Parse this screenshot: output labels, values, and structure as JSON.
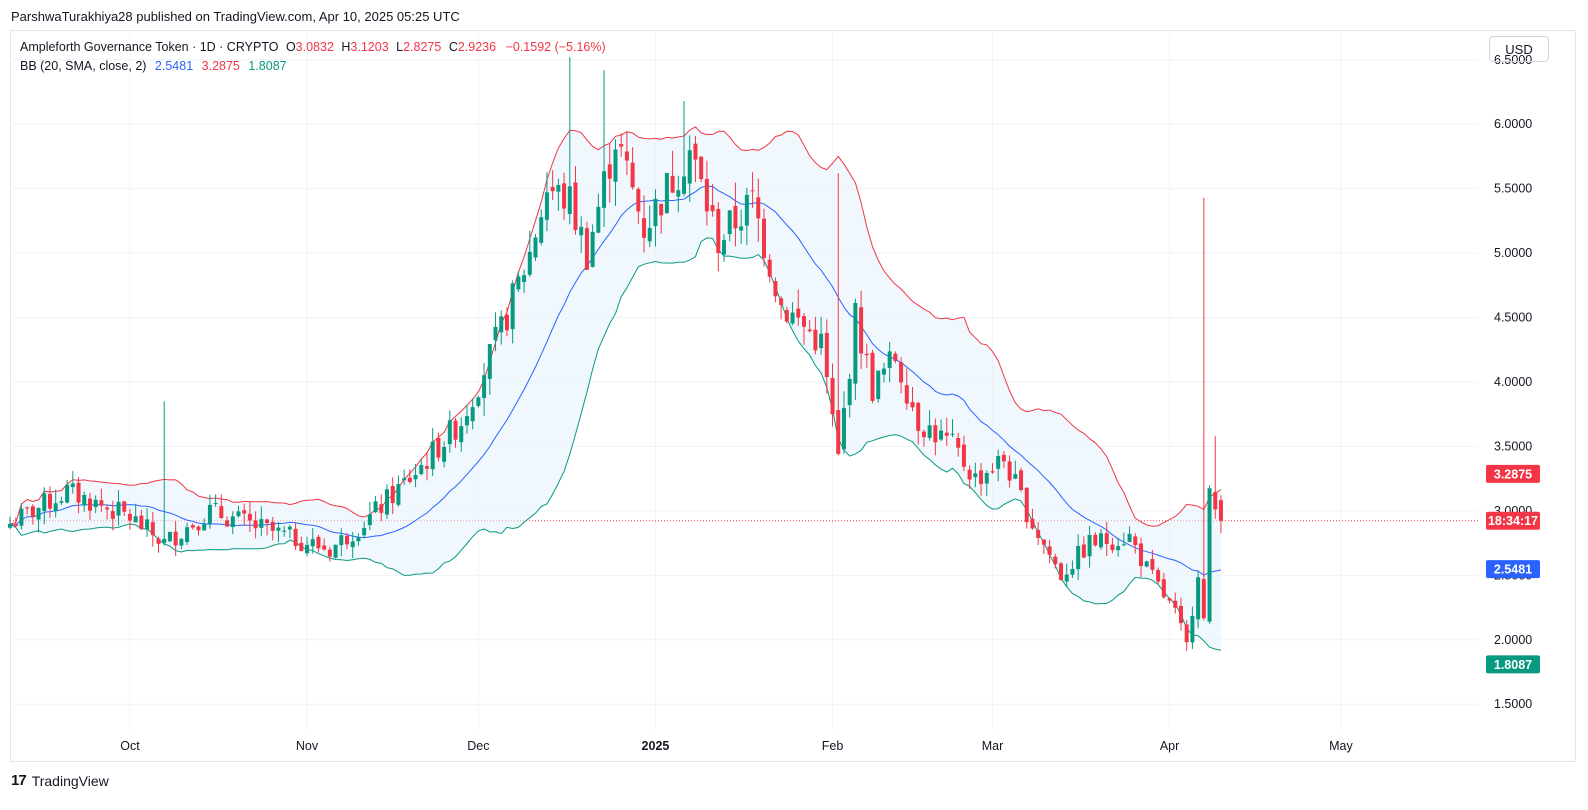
{
  "header": {
    "publisher": "ParshwaTurakhiya28 published on TradingView.com, Apr 10, 2025 05:25 UTC"
  },
  "legend": {
    "symbol": "Ampleforth Governance Token · 1D · CRYPTO",
    "o_label": "O",
    "o_value": "3.0832",
    "h_label": "H",
    "h_value": "3.1203",
    "l_label": "L",
    "l_value": "2.8275",
    "c_label": "C",
    "c_value": "2.9236",
    "change": "−0.1592 (−5.16%)",
    "bb_label": "BB (20, SMA, close, 2)",
    "bb_basis": "2.5481",
    "bb_upper": "3.2875",
    "bb_lower": "1.8087"
  },
  "currency_button": "USD",
  "footer": {
    "brand": "TradingView"
  },
  "price_tags": {
    "upper": "3.2875",
    "countdown": "18:34:17",
    "basis": "2.5481",
    "lower": "1.8087"
  },
  "colors": {
    "up": "#089981",
    "down": "#f23645",
    "basis": "#2962ff",
    "band_fill": "#e3f2fd"
  },
  "chart_data": {
    "type": "candlestick",
    "title": "Ampleforth Governance Token · 1D · CRYPTO",
    "x_range": [
      "2024-09-10",
      "2025-05-25"
    ],
    "x_ticks": [
      {
        "date": "2024-10-01",
        "label": "Oct"
      },
      {
        "date": "2024-11-01",
        "label": "Nov"
      },
      {
        "date": "2024-12-01",
        "label": "Dec"
      },
      {
        "date": "2025-01-01",
        "label": "2025",
        "bold": true
      },
      {
        "date": "2025-02-01",
        "label": "Feb"
      },
      {
        "date": "2025-03-01",
        "label": "Mar"
      },
      {
        "date": "2025-04-01",
        "label": "Apr"
      },
      {
        "date": "2025-05-01",
        "label": "May"
      }
    ],
    "y_ticks": [
      "1.5000",
      "2.0000",
      "2.5000",
      "3.0000",
      "3.5000",
      "4.0000",
      "4.5000",
      "5.0000",
      "5.5000",
      "6.0000",
      "6.5000"
    ],
    "ylim": [
      1.3,
      6.7
    ],
    "current_price": 2.9236,
    "key_points": [
      {
        "date": "2024-09-10",
        "close": 2.9
      },
      {
        "date": "2024-09-20",
        "close": 3.15
      },
      {
        "date": "2024-10-01",
        "close": 2.95
      },
      {
        "date": "2024-10-07",
        "close": 2.75
      },
      {
        "date": "2024-10-15",
        "close": 3.0
      },
      {
        "date": "2024-10-25",
        "close": 2.85
      },
      {
        "date": "2024-11-05",
        "close": 2.7
      },
      {
        "date": "2024-11-12",
        "close": 2.95
      },
      {
        "date": "2024-11-20",
        "close": 3.3
      },
      {
        "date": "2024-11-28",
        "close": 3.7
      },
      {
        "date": "2024-12-05",
        "close": 4.4
      },
      {
        "date": "2024-12-10",
        "close": 5.0
      },
      {
        "date": "2024-12-13",
        "close": 5.5
      },
      {
        "date": "2024-12-17",
        "close": 5.4
      },
      {
        "date": "2024-12-20",
        "close": 5.0
      },
      {
        "date": "2024-12-25",
        "close": 5.9
      },
      {
        "date": "2024-12-30",
        "close": 5.2
      },
      {
        "date": "2025-01-07",
        "close": 5.8
      },
      {
        "date": "2025-01-12",
        "close": 5.1
      },
      {
        "date": "2025-01-18",
        "close": 5.4
      },
      {
        "date": "2025-01-23",
        "close": 4.6
      },
      {
        "date": "2025-01-30",
        "close": 4.3
      },
      {
        "date": "2025-02-02",
        "close": 3.4
      },
      {
        "date": "2025-02-05",
        "close": 4.5
      },
      {
        "date": "2025-02-08",
        "close": 3.95
      },
      {
        "date": "2025-02-12",
        "close": 4.2
      },
      {
        "date": "2025-02-16",
        "close": 3.7
      },
      {
        "date": "2025-02-22",
        "close": 3.5
      },
      {
        "date": "2025-02-26",
        "close": 3.25
      },
      {
        "date": "2025-03-03",
        "close": 3.4
      },
      {
        "date": "2025-03-08",
        "close": 2.9
      },
      {
        "date": "2025-03-13",
        "close": 2.5
      },
      {
        "date": "2025-03-18",
        "close": 2.75
      },
      {
        "date": "2025-03-25",
        "close": 2.8
      },
      {
        "date": "2025-03-28",
        "close": 2.55
      },
      {
        "date": "2025-04-02",
        "close": 2.2
      },
      {
        "date": "2025-04-04",
        "close": 1.95
      },
      {
        "date": "2025-04-06",
        "close": 2.55
      },
      {
        "date": "2025-04-07",
        "close": 2.15
      },
      {
        "date": "2025-04-08",
        "close": 3.1
      },
      {
        "date": "2025-04-10",
        "close": 2.92
      }
    ],
    "spikes": [
      {
        "date": "2024-10-07",
        "high": 3.85
      },
      {
        "date": "2024-12-17",
        "high": 6.52
      },
      {
        "date": "2024-12-23",
        "high": 6.42
      },
      {
        "date": "2025-01-06",
        "high": 6.18
      },
      {
        "date": "2025-02-02",
        "high": 5.62
      },
      {
        "date": "2025-04-07",
        "high": 5.43
      },
      {
        "date": "2025-04-09",
        "high": 3.58
      }
    ]
  }
}
